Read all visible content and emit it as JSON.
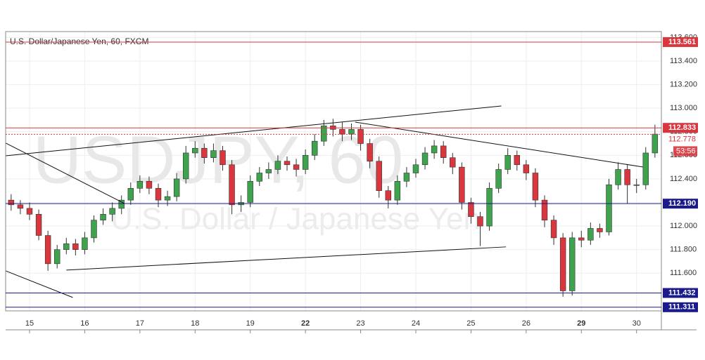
{
  "chart_data": {
    "type": "candlestick",
    "title": "U.S. Dollar/Japanese Yen, 60, FXCM",
    "watermark": "USDJPY, 60",
    "watermark_subtitle": "U.S. Dollar / Japanese Yen",
    "up_color": "#3fa34d",
    "down_color": "#d9363e",
    "open": [
      112.22,
      112.18,
      112.15,
      112.1,
      111.92,
      111.68,
      111.8,
      111.85,
      111.8,
      111.9,
      112.05,
      112.1,
      112.15,
      112.22,
      112.32,
      112.38,
      112.32,
      112.22,
      112.25,
      112.4,
      112.62,
      112.66,
      112.58,
      112.64,
      112.52,
      112.18,
      112.2,
      112.38,
      112.45,
      112.48,
      112.55,
      112.52,
      112.48,
      112.6,
      112.72,
      112.85,
      112.82,
      112.78,
      112.82,
      112.7,
      112.55,
      112.3,
      112.22,
      112.38,
      112.45,
      112.52,
      112.62,
      112.68,
      112.58,
      112.5,
      112.2,
      112.08,
      112.0,
      112.32,
      112.48,
      112.6,
      112.52,
      112.45,
      112.22,
      112.05,
      111.9,
      111.45,
      111.9,
      111.88,
      111.98,
      111.95,
      112.35,
      112.48,
      112.35,
      112.35,
      112.62
    ],
    "high": [
      112.27,
      112.22,
      112.2,
      112.14,
      111.96,
      111.84,
      111.9,
      111.89,
      111.95,
      112.09,
      112.15,
      112.2,
      112.26,
      112.37,
      112.43,
      112.42,
      112.36,
      112.3,
      112.45,
      112.68,
      112.72,
      112.7,
      112.7,
      112.68,
      112.56,
      112.26,
      112.43,
      112.5,
      112.54,
      112.6,
      112.59,
      112.57,
      112.65,
      112.78,
      112.9,
      112.91,
      112.88,
      112.87,
      112.86,
      112.74,
      112.59,
      112.34,
      112.43,
      112.5,
      112.57,
      112.67,
      112.73,
      112.72,
      112.62,
      112.54,
      112.24,
      112.12,
      112.37,
      112.53,
      112.66,
      112.64,
      112.56,
      112.49,
      112.26,
      112.09,
      111.94,
      111.95,
      111.96,
      112.03,
      112.02,
      112.4,
      112.54,
      112.52,
      112.4,
      112.67,
      112.86
    ],
    "low": [
      112.13,
      112.1,
      112.05,
      111.88,
      111.62,
      111.64,
      111.76,
      111.75,
      111.76,
      111.86,
      112.01,
      112.04,
      112.1,
      112.18,
      112.28,
      112.27,
      112.16,
      112.17,
      112.21,
      112.36,
      112.58,
      112.53,
      112.54,
      112.47,
      112.1,
      112.12,
      112.16,
      112.34,
      112.4,
      112.44,
      112.47,
      112.42,
      112.44,
      112.56,
      112.68,
      112.76,
      112.72,
      112.73,
      112.64,
      112.49,
      112.24,
      112.15,
      112.18,
      112.33,
      112.41,
      112.48,
      112.57,
      112.53,
      112.44,
      112.14,
      112.02,
      111.83,
      111.96,
      112.28,
      112.44,
      112.47,
      112.39,
      112.16,
      111.99,
      111.84,
      111.4,
      111.41,
      111.82,
      111.84,
      111.9,
      111.92,
      112.31,
      112.19,
      112.28,
      112.31,
      112.58
    ],
    "close": [
      112.18,
      112.15,
      112.1,
      111.92,
      111.68,
      111.8,
      111.85,
      111.8,
      111.9,
      112.05,
      112.1,
      112.15,
      112.22,
      112.32,
      112.38,
      112.32,
      112.22,
      112.25,
      112.4,
      112.62,
      112.66,
      112.58,
      112.64,
      112.52,
      112.18,
      112.2,
      112.38,
      112.45,
      112.48,
      112.55,
      112.52,
      112.48,
      112.6,
      112.72,
      112.85,
      112.82,
      112.78,
      112.82,
      112.7,
      112.55,
      112.3,
      112.22,
      112.38,
      112.45,
      112.52,
      112.62,
      112.68,
      112.58,
      112.5,
      112.2,
      112.08,
      112.0,
      112.32,
      112.48,
      112.6,
      112.52,
      112.45,
      112.22,
      112.05,
      111.9,
      111.45,
      111.9,
      111.88,
      111.98,
      111.95,
      112.35,
      112.48,
      112.35,
      112.35,
      112.62,
      112.78
    ],
    "xlim": [
      -0.6,
      70.7
    ],
    "xticks": [
      {
        "value": 2,
        "label": "15"
      },
      {
        "value": 8,
        "label": "16"
      },
      {
        "value": 14,
        "label": "17"
      },
      {
        "value": 20,
        "label": "18"
      },
      {
        "value": 26,
        "label": "19"
      },
      {
        "value": 32,
        "label": "22"
      },
      {
        "value": 38,
        "label": "23"
      },
      {
        "value": 44,
        "label": "24"
      },
      {
        "value": 50,
        "label": "25"
      },
      {
        "value": 56,
        "label": "26"
      },
      {
        "value": 62,
        "label": "29"
      },
      {
        "value": 68,
        "label": "30"
      }
    ],
    "ylim": [
      111.28,
      113.65
    ],
    "yticks": [
      {
        "value": 111.6,
        "label": "111.600"
      },
      {
        "value": 111.8,
        "label": "111.800"
      },
      {
        "value": 112.0,
        "label": "112.000"
      },
      {
        "value": 112.2,
        "label": "112.200"
      },
      {
        "value": 112.4,
        "label": "112.400"
      },
      {
        "value": 112.6,
        "label": "112.600"
      },
      {
        "value": 112.8,
        "label": "112.800"
      },
      {
        "value": 113.0,
        "label": "113.000"
      },
      {
        "value": 113.2,
        "label": "113.200"
      },
      {
        "value": 113.4,
        "label": "113.400"
      },
      {
        "value": 113.6,
        "label": "113.600"
      }
    ],
    "grid": true,
    "levels": [
      {
        "value": 113.561,
        "color": "#d9363e"
      },
      {
        "value": 112.833,
        "color": "#d9363e"
      },
      {
        "value": 112.778,
        "color": "#d9363e",
        "dotted": true
      },
      {
        "value": {
          "value": 112.19,
          "label": "112.190"
        },
        "color": "#1a1a8c"
      },
      {
        "value": 111.432,
        "color": "#1a1a8c"
      },
      {
        "value": 111.311,
        "color": "#1a1a8c"
      }
    ],
    "countdown": "53:56",
    "trendlines": [
      [
        [
          -0.6,
          112.596
        ],
        [
          53.3,
          113.019
        ]
      ],
      [
        [
          6.0,
          111.626
        ],
        [
          53.8,
          111.823
        ]
      ],
      [
        [
          37.4,
          112.882
        ],
        [
          68.7,
          112.501
        ]
      ],
      [
        [
          -0.6,
          112.704
        ],
        [
          12.3,
          112.192
        ]
      ],
      [
        [
          -0.6,
          111.62
        ],
        [
          6.7,
          111.394
        ]
      ]
    ]
  }
}
